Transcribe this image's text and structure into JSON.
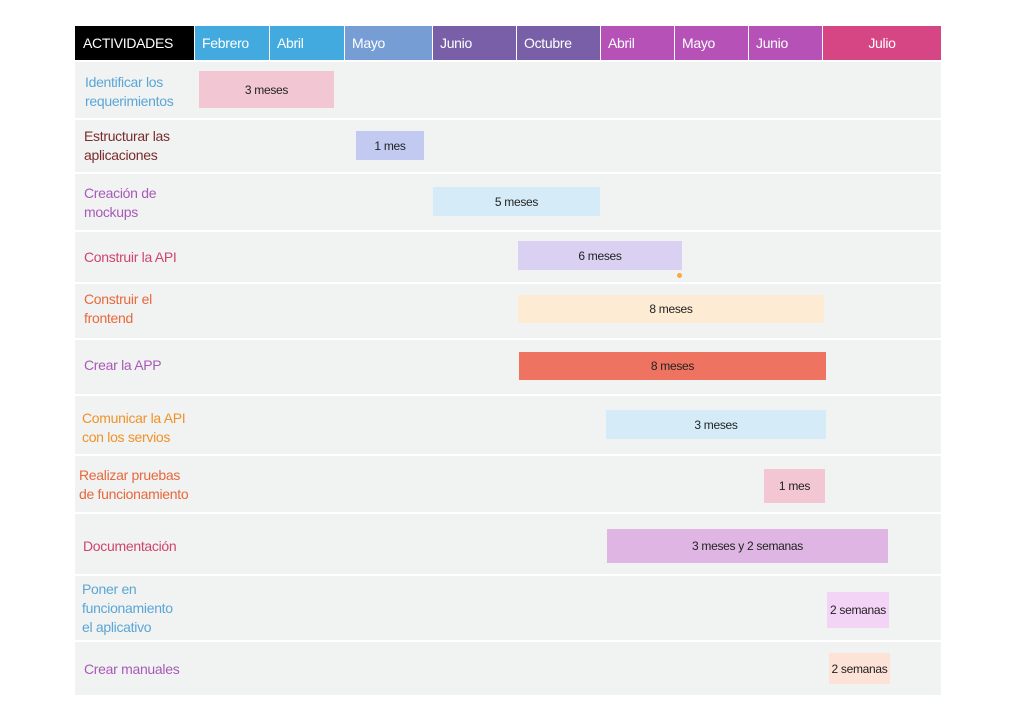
{
  "header": {
    "activities_label": "ACTIVIDADES",
    "months": [
      "Febrero",
      "Abril",
      "Mayo",
      "Junio",
      "Octubre",
      "Abril",
      "Mayo",
      "Junio",
      "Julio"
    ]
  },
  "tasks": [
    {
      "name": "Identificar los\nrequerimientos",
      "start_month": "Febrero",
      "end_month": "Abril",
      "duration": "3 meses",
      "name_color": "#5aa6d6",
      "bar_color": "#f2c6d2"
    },
    {
      "name": "Estructurar las\naplicaciones",
      "start_month": "Mayo",
      "end_month": "Mayo",
      "duration": "1 mes",
      "name_color": "#7a2c2c",
      "bar_color": "#c3caf2"
    },
    {
      "name": "Creación de\nmockups",
      "start_month": "Junio",
      "end_month": "Octubre",
      "duration": "5 meses",
      "name_color": "#a85ab8",
      "bar_color": "#d5ecf8"
    },
    {
      "name": "Construir la API",
      "start_month": "Octubre",
      "end_month": "Abril",
      "duration": "6 meses",
      "name_color": "#d0456e",
      "bar_color": "#d9d0f2"
    },
    {
      "name": "Construir el\nfrontend",
      "start_month": "Octubre",
      "end_month": "Junio",
      "duration": "8 meses",
      "name_color": "#e8683c",
      "bar_color": "#fdebd4"
    },
    {
      "name": "Crear la APP",
      "start_month": "Octubre",
      "end_month": "Junio",
      "duration": "8 meses",
      "name_color": "#a85ab8",
      "bar_color": "#ef7361"
    },
    {
      "name": "Comunicar la API\ncon los servios",
      "start_month": "Abril",
      "end_month": "Junio",
      "duration": "3 meses",
      "name_color": "#f0922a",
      "bar_color": "#d5ecf8"
    },
    {
      "name": "Realizar pruebas\nde funcionamiento",
      "start_month": "Junio",
      "end_month": "Junio",
      "duration": "1 mes",
      "name_color": "#e8683c",
      "bar_color": "#f2c6d2"
    },
    {
      "name": "Documentación",
      "start_month": "Abril",
      "end_month": "Julio",
      "duration": "3 meses y 2 semanas",
      "name_color": "#d0456e",
      "bar_color": "#dfb6e3"
    },
    {
      "name": "Poner en\nfuncionamiento\nel aplicativo",
      "start_month": "Julio",
      "end_month": "Julio",
      "duration": "2 semanas",
      "name_color": "#5aa6d6",
      "bar_color": "#f4d4f6"
    },
    {
      "name": "Crear manuales",
      "start_month": "Julio",
      "end_month": "Julio",
      "duration": "2 semanas",
      "name_color": "#a85ab8",
      "bar_color": "#fde2d8"
    }
  ],
  "colors": {
    "activities_header": "#000000",
    "month_headers": [
      "#43aadf",
      "#43aadf",
      "#779dd5",
      "#785fa8",
      "#785fa8",
      "#b551b7",
      "#b551b7",
      "#b551b7",
      "#d64584"
    ],
    "row_background": "#f1f2f2",
    "dot": "#f5a94a"
  }
}
